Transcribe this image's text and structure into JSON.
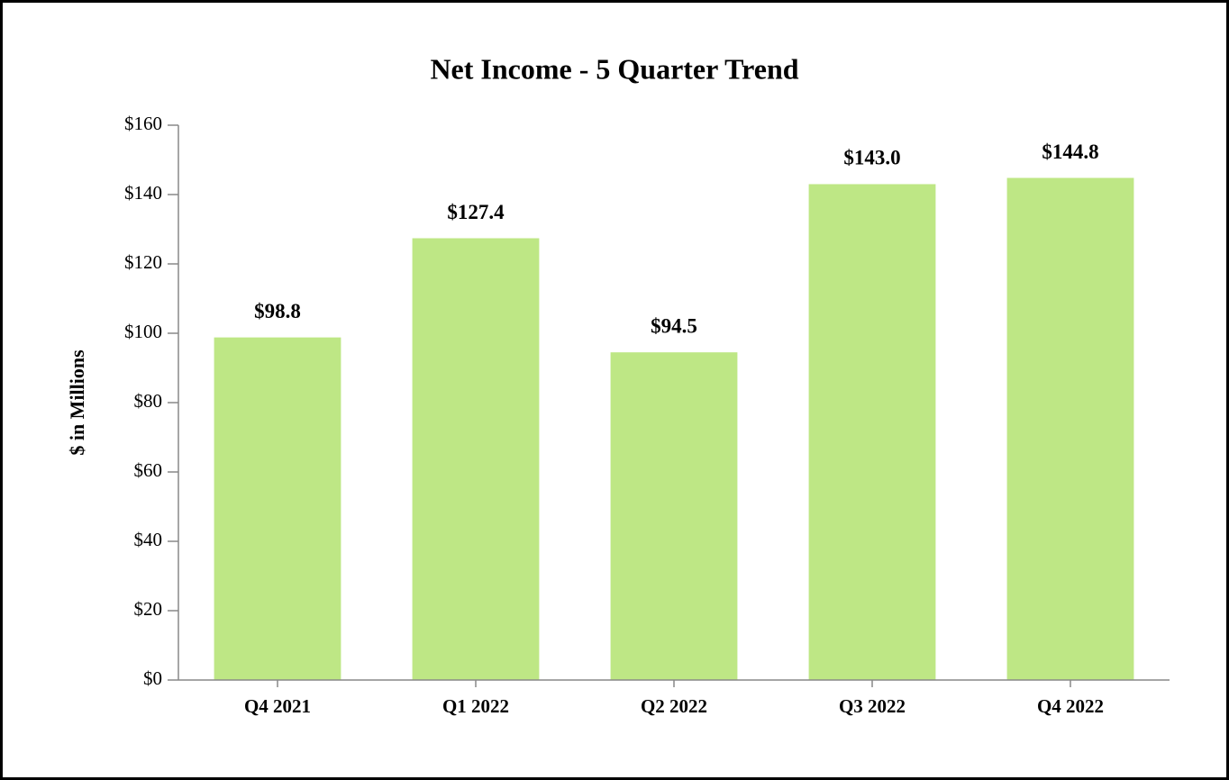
{
  "chart_data": {
    "type": "bar",
    "title": "Net Income - 5 Quarter Trend",
    "y_label": "$ in Millions",
    "categories": [
      "Q4 2021",
      "Q1 2022",
      "Q2 2022",
      "Q3 2022",
      "Q4 2022"
    ],
    "values": [
      98.8,
      127.4,
      94.5,
      143.0,
      144.8
    ],
    "value_labels": [
      "$98.8",
      "$127.4",
      "$94.5",
      "$143.0",
      "$144.8"
    ],
    "color": "#bee785",
    "ylim": [
      0,
      160
    ],
    "yticks": [
      {
        "value": 0,
        "label": "$0"
      },
      {
        "value": 20,
        "label": "$20"
      },
      {
        "value": 40,
        "label": "$40"
      },
      {
        "value": 60,
        "label": "$60"
      },
      {
        "value": 80,
        "label": "$80"
      },
      {
        "value": 100,
        "label": "$100"
      },
      {
        "value": 120,
        "label": "$120"
      },
      {
        "value": 140,
        "label": "$140"
      },
      {
        "value": 160,
        "label": "$160"
      }
    ],
    "grid": false
  }
}
